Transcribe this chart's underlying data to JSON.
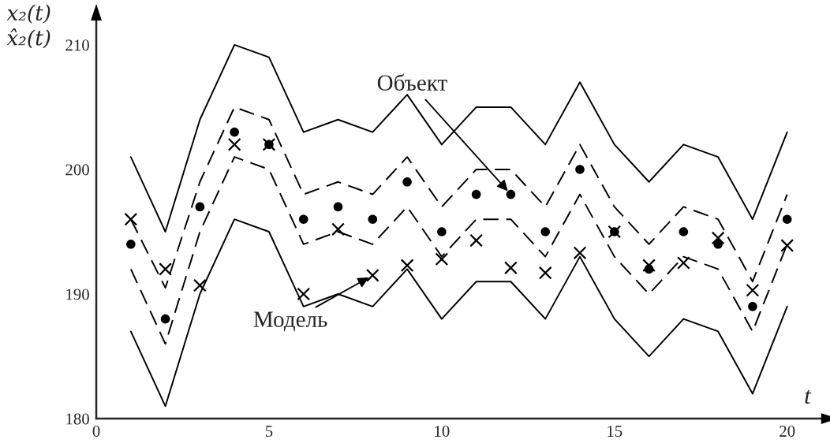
{
  "chart_data": {
    "type": "line",
    "x": [
      1,
      2,
      3,
      4,
      5,
      6,
      7,
      8,
      9,
      10,
      11,
      12,
      13,
      14,
      15,
      16,
      17,
      18,
      19,
      20
    ],
    "xlabel": "t",
    "ylabel": "x₂(t)\nx̂₂(t)",
    "xlim": [
      0,
      21
    ],
    "xticks": [
      0,
      5,
      10,
      15,
      20
    ],
    "ylim": [
      180,
      212
    ],
    "yticks": [
      180,
      190,
      200,
      210
    ],
    "grid": false,
    "legend": false,
    "series": [
      {
        "type": "line",
        "line_style": "solid",
        "color": "#000000",
        "values": [
          201,
          195,
          204,
          210,
          209,
          203,
          204,
          203,
          206,
          202,
          205,
          205,
          202,
          207,
          202,
          199,
          202,
          201,
          196,
          203
        ]
      },
      {
        "type": "line",
        "line_style": "dashed",
        "color": "#000000",
        "values": [
          196,
          190.5,
          199,
          205,
          204,
          198,
          199,
          198,
          201,
          197,
          200,
          200,
          197,
          202,
          197,
          194,
          197,
          196,
          191,
          198
        ]
      },
      {
        "type": "line",
        "line_style": "dashed",
        "color": "#000000",
        "values": [
          192,
          186,
          195,
          201,
          200,
          194,
          195,
          194,
          197,
          193,
          196,
          196,
          193,
          198,
          193,
          190,
          193,
          192,
          187,
          194
        ]
      },
      {
        "type": "line",
        "line_style": "solid",
        "color": "#000000",
        "values": [
          187,
          181,
          190,
          196,
          195,
          189,
          190,
          189,
          192,
          188,
          191,
          191,
          188,
          193,
          188,
          185,
          188,
          187,
          182,
          189
        ]
      },
      {
        "type": "scatter",
        "marker": "circle",
        "color": "#000000",
        "values": [
          194,
          188,
          197,
          203,
          202,
          196,
          197,
          196,
          199,
          195,
          198,
          198,
          195,
          200,
          195,
          192,
          195,
          194,
          189,
          196
        ]
      },
      {
        "type": "scatter",
        "marker": "cross",
        "color": "#000000",
        "values": [
          196,
          192,
          190.7,
          202,
          202,
          190,
          195.2,
          191.5,
          192.3,
          192.8,
          194.3,
          192.1,
          191.7,
          193.3,
          195,
          192.3,
          192.5,
          194.5,
          190.3,
          193.9
        ]
      }
    ],
    "annotations": [
      {
        "text": "Объект",
        "x": 12,
        "y": 198
      },
      {
        "text": "Модель",
        "x": 8,
        "y": 191.5
      }
    ]
  }
}
